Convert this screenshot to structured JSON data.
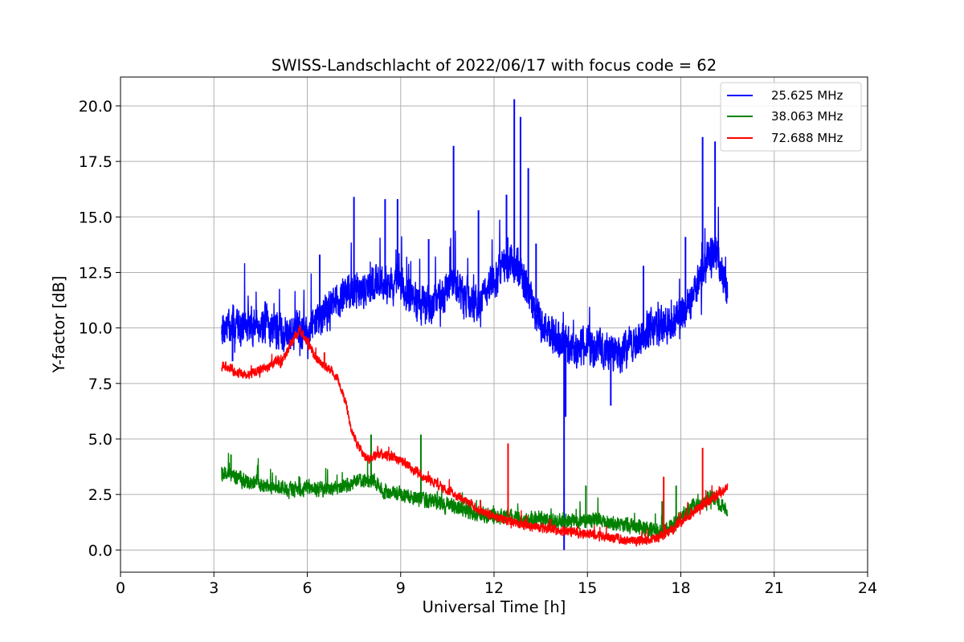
{
  "chart_data": {
    "type": "line",
    "title": "SWISS-Landschlacht of 2022/06/17 with focus code = 62",
    "xlabel": "Universal Time [h]",
    "ylabel": "Y-factor [dB]",
    "xlim": [
      0,
      24
    ],
    "ylim": [
      -1.0,
      21.3
    ],
    "xticks": [
      0,
      3,
      6,
      9,
      12,
      15,
      18,
      21,
      24
    ],
    "xtick_labels": [
      "0",
      "3",
      "6",
      "9",
      "12",
      "15",
      "18",
      "21",
      "24"
    ],
    "yticks": [
      0.0,
      2.5,
      5.0,
      7.5,
      10.0,
      12.5,
      15.0,
      17.5,
      20.0
    ],
    "ytick_labels": [
      "0.0",
      "2.5",
      "5.0",
      "7.5",
      "10.0",
      "12.5",
      "15.0",
      "17.5",
      "20.0"
    ],
    "grid": true,
    "legend_position": "top-right",
    "series": [
      {
        "name": "25.625 MHz",
        "color": "#0000ff",
        "x": [
          3.25,
          3.5,
          3.75,
          4.0,
          4.25,
          4.5,
          4.75,
          5.0,
          5.25,
          5.5,
          5.75,
          6.0,
          6.25,
          6.5,
          6.75,
          7.0,
          7.25,
          7.5,
          7.75,
          8.0,
          8.25,
          8.5,
          8.75,
          9.0,
          9.25,
          9.5,
          9.75,
          10.0,
          10.25,
          10.5,
          10.75,
          11.0,
          11.25,
          11.5,
          11.75,
          12.0,
          12.25,
          12.5,
          12.75,
          13.0,
          13.25,
          13.5,
          13.75,
          14.0,
          14.25,
          14.5,
          14.75,
          15.0,
          15.25,
          15.5,
          15.75,
          16.0,
          16.25,
          16.5,
          16.75,
          17.0,
          17.25,
          17.5,
          17.75,
          18.0,
          18.25,
          18.5,
          18.75,
          19.0,
          19.25,
          19.5
        ],
        "y": [
          10.1,
          10.0,
          10.2,
          10.0,
          10.1,
          10.2,
          10.1,
          9.9,
          9.8,
          9.8,
          9.9,
          10.0,
          10.2,
          10.6,
          10.9,
          11.2,
          11.5,
          11.6,
          11.8,
          11.7,
          12.2,
          12.0,
          11.8,
          12.1,
          11.5,
          11.2,
          10.9,
          11.0,
          11.4,
          11.7,
          12.0,
          11.6,
          11.3,
          11.2,
          11.6,
          12.3,
          12.5,
          12.8,
          12.7,
          12.0,
          11.0,
          10.2,
          9.8,
          9.5,
          9.2,
          9.0,
          9.1,
          9.3,
          9.2,
          9.0,
          8.9,
          8.8,
          9.0,
          9.3,
          9.6,
          9.9,
          10.0,
          10.2,
          10.3,
          10.6,
          11.0,
          11.8,
          12.6,
          13.5,
          12.8,
          11.8
        ],
        "spikes": [
          {
            "x": 3.6,
            "y": 8.5
          },
          {
            "x": 4.65,
            "y": 11.2
          },
          {
            "x": 6.4,
            "y": 13.3
          },
          {
            "x": 7.5,
            "y": 15.9
          },
          {
            "x": 8.5,
            "y": 15.8
          },
          {
            "x": 8.9,
            "y": 15.8
          },
          {
            "x": 9.9,
            "y": 14.0
          },
          {
            "x": 10.7,
            "y": 18.2
          },
          {
            "x": 11.5,
            "y": 15.3
          },
          {
            "x": 12.4,
            "y": 16.0
          },
          {
            "x": 12.65,
            "y": 20.3
          },
          {
            "x": 12.85,
            "y": 19.5
          },
          {
            "x": 13.1,
            "y": 17.2
          },
          {
            "x": 13.35,
            "y": 13.8
          },
          {
            "x": 14.25,
            "y": 0.0
          },
          {
            "x": 14.3,
            "y": 6.0
          },
          {
            "x": 15.75,
            "y": 6.5
          },
          {
            "x": 16.8,
            "y": 12.8
          },
          {
            "x": 18.7,
            "y": 18.6
          },
          {
            "x": 19.1,
            "y": 18.4
          },
          {
            "x": 18.15,
            "y": 14.1
          }
        ]
      },
      {
        "name": "38.063 MHz",
        "color": "#008000",
        "x": [
          3.25,
          3.5,
          3.75,
          4.0,
          4.5,
          5.0,
          5.5,
          6.0,
          6.5,
          7.0,
          7.5,
          8.0,
          8.25,
          8.5,
          9.0,
          9.5,
          10.0,
          10.5,
          11.0,
          11.5,
          12.0,
          12.5,
          13.0,
          13.5,
          14.0,
          14.5,
          15.0,
          15.5,
          16.0,
          16.5,
          17.0,
          17.25,
          17.5,
          18.0,
          18.5,
          19.0,
          19.5
        ],
        "y": [
          3.3,
          3.5,
          3.3,
          3.1,
          3.0,
          2.8,
          2.7,
          2.8,
          2.7,
          2.8,
          3.0,
          3.2,
          3.0,
          2.6,
          2.5,
          2.3,
          2.2,
          2.0,
          1.8,
          1.6,
          1.5,
          1.5,
          1.4,
          1.4,
          1.3,
          1.3,
          1.4,
          1.3,
          1.2,
          1.1,
          0.9,
          0.8,
          0.9,
          1.5,
          2.1,
          2.4,
          1.8
        ],
        "spikes": [
          {
            "x": 3.55,
            "y": 4.3
          },
          {
            "x": 8.05,
            "y": 5.2
          },
          {
            "x": 9.65,
            "y": 5.2
          },
          {
            "x": 14.95,
            "y": 2.9
          },
          {
            "x": 17.4,
            "y": 2.2
          },
          {
            "x": 17.85,
            "y": 2.9
          }
        ]
      },
      {
        "name": "72.688 MHz",
        "color": "#ff0000",
        "x": [
          3.25,
          3.5,
          3.75,
          4.0,
          4.25,
          4.5,
          4.75,
          5.0,
          5.15,
          5.3,
          5.5,
          5.75,
          6.0,
          6.25,
          6.5,
          6.75,
          7.0,
          7.25,
          7.4,
          7.6,
          7.8,
          8.0,
          8.25,
          8.5,
          8.75,
          9.0,
          9.25,
          9.5,
          10.0,
          10.5,
          11.0,
          11.5,
          12.0,
          12.5,
          13.0,
          13.5,
          14.0,
          14.5,
          15.0,
          15.5,
          16.0,
          16.5,
          17.0,
          17.5,
          18.0,
          18.5,
          19.0,
          19.5
        ],
        "y": [
          8.3,
          8.2,
          8.0,
          7.9,
          8.0,
          8.1,
          8.2,
          8.6,
          8.4,
          8.8,
          9.4,
          9.9,
          9.4,
          8.7,
          8.4,
          8.1,
          7.6,
          6.6,
          5.5,
          4.8,
          4.3,
          4.1,
          4.3,
          4.3,
          4.2,
          4.0,
          3.8,
          3.5,
          3.1,
          2.7,
          2.3,
          1.8,
          1.5,
          1.3,
          1.1,
          1.0,
          0.9,
          0.8,
          0.7,
          0.6,
          0.5,
          0.4,
          0.5,
          0.7,
          1.2,
          1.8,
          2.3,
          2.8
        ],
        "spikes": [
          {
            "x": 6.55,
            "y": 8.9
          },
          {
            "x": 12.45,
            "y": 4.8
          },
          {
            "x": 17.45,
            "y": 3.3
          },
          {
            "x": 18.7,
            "y": 4.6
          }
        ]
      }
    ]
  }
}
